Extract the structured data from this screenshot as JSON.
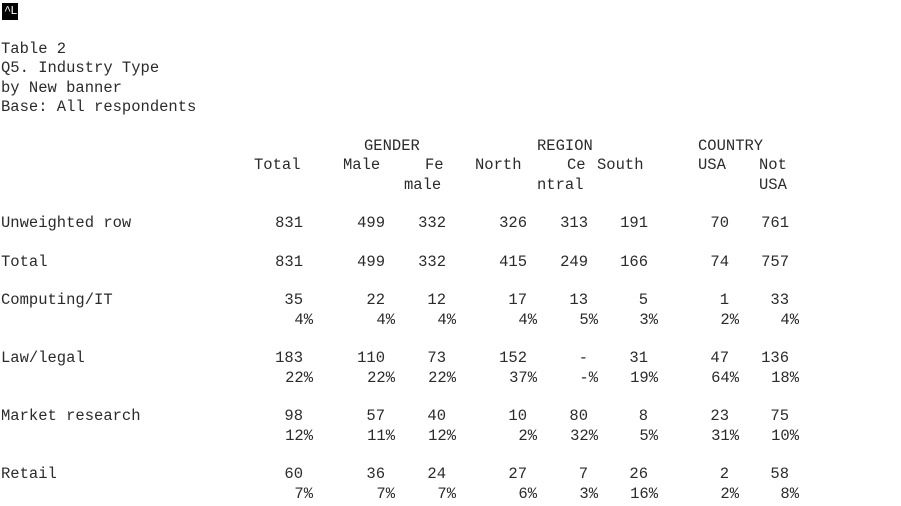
{
  "marker": "^L",
  "title": {
    "table": "Table 2",
    "question": "Q5. Industry Type",
    "banner": "by New banner",
    "base": "Base: All respondents"
  },
  "groups": {
    "gender": "GENDER",
    "region": "REGION",
    "country": "COUNTRY"
  },
  "columns": {
    "total": "Total",
    "male": "Male",
    "female_1": "Fe",
    "female_2": "male",
    "north": "North",
    "central_1": "Ce",
    "central_2": "ntral",
    "south": "South",
    "usa": "USA",
    "not_usa_1": "Not",
    "not_usa_2": "USA"
  },
  "rows": [
    {
      "label": "Unweighted row",
      "counts": [
        "831",
        "499",
        "332",
        "326",
        "313",
        "191",
        "70",
        "761"
      ]
    },
    {
      "label": "Total",
      "counts": [
        "831",
        "499",
        "332",
        "415",
        "249",
        "166",
        "74",
        "757"
      ]
    },
    {
      "label": "Computing/IT",
      "counts": [
        "35",
        "22",
        "12",
        "17",
        "13",
        "5",
        "1",
        "33"
      ],
      "pcts": [
        "4%",
        "4%",
        "4%",
        "4%",
        "5%",
        "3%",
        "2%",
        "4%"
      ]
    },
    {
      "label": "Law/legal",
      "counts": [
        "183",
        "110",
        "73",
        "152",
        "-",
        "31",
        "47",
        "136"
      ],
      "pcts": [
        "22%",
        "22%",
        "22%",
        "37%",
        "-%",
        "19%",
        "64%",
        "18%"
      ]
    },
    {
      "label": "Market research",
      "counts": [
        "98",
        "57",
        "40",
        "10",
        "80",
        "8",
        "23",
        "75"
      ],
      "pcts": [
        "12%",
        "11%",
        "12%",
        "2%",
        "32%",
        "5%",
        "31%",
        "10%"
      ]
    },
    {
      "label": "Retail",
      "counts": [
        "60",
        "36",
        "24",
        "27",
        "7",
        "26",
        "2",
        "58"
      ],
      "pcts": [
        "7%",
        "7%",
        "7%",
        "6%",
        "3%",
        "16%",
        "2%",
        "8%"
      ]
    }
  ]
}
